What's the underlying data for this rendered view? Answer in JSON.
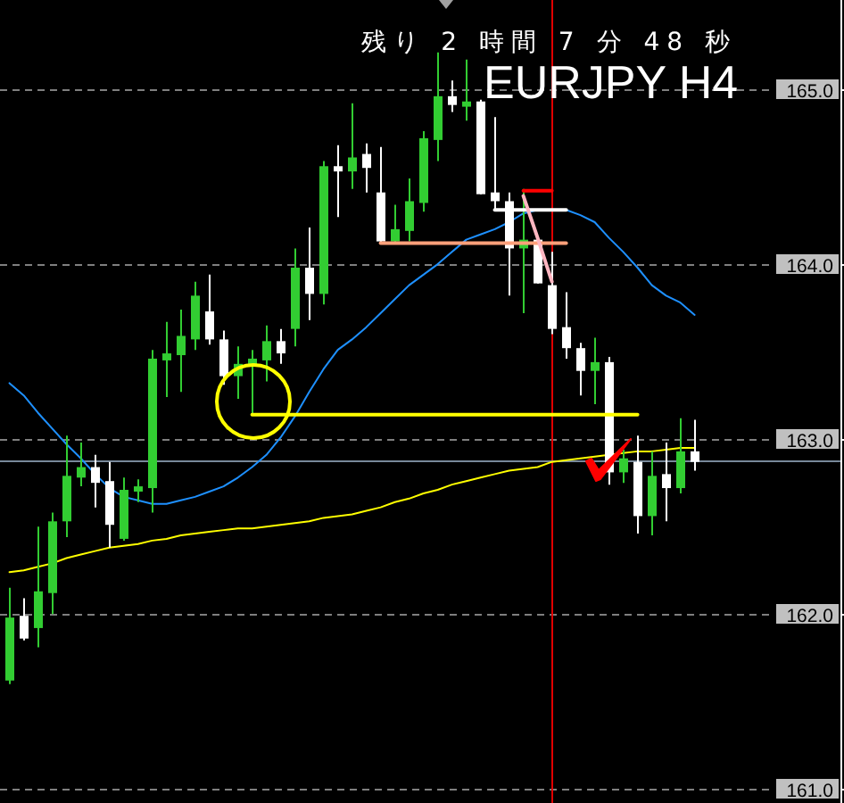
{
  "chart_data": {
    "type": "candlestick",
    "title": "EURJPY H4",
    "annotations": [
      "残り 2 時間 7 分 48 秒"
    ],
    "categories": [
      null,
      null,
      null,
      null,
      null,
      null,
      null,
      null,
      null,
      null,
      null,
      null,
      null,
      null,
      null,
      null,
      null,
      null,
      null,
      null,
      null,
      null,
      null,
      null,
      null,
      null,
      null,
      null,
      null,
      null,
      null,
      null,
      null,
      null,
      null,
      null,
      null,
      null,
      null,
      null,
      null,
      null,
      null,
      null,
      null,
      null,
      null,
      null,
      null
    ],
    "ohlc": [
      [
        161.62,
        162.15,
        161.6,
        161.98
      ],
      [
        161.99,
        162.09,
        161.85,
        161.86
      ],
      [
        161.92,
        162.5,
        161.81,
        162.13
      ],
      [
        162.12,
        162.58,
        162.0,
        162.53
      ],
      [
        162.53,
        163.02,
        162.44,
        162.79
      ],
      [
        162.78,
        162.98,
        162.73,
        162.84
      ],
      [
        162.84,
        162.91,
        162.61,
        162.75
      ],
      [
        162.76,
        162.87,
        162.38,
        162.51
      ],
      [
        162.43,
        162.78,
        162.42,
        162.71
      ],
      [
        162.7,
        162.77,
        162.64,
        162.73
      ],
      [
        162.72,
        163.51,
        162.58,
        163.46
      ],
      [
        163.45,
        163.67,
        163.24,
        163.49
      ],
      [
        163.48,
        163.74,
        163.27,
        163.59
      ],
      [
        163.57,
        163.9,
        163.51,
        163.82
      ],
      [
        163.73,
        163.94,
        163.54,
        163.57
      ],
      [
        163.57,
        163.62,
        163.31,
        163.36
      ],
      [
        163.36,
        163.53,
        163.23,
        163.43
      ],
      [
        163.42,
        163.51,
        163.14,
        163.46
      ],
      [
        163.45,
        163.65,
        163.33,
        163.56
      ],
      [
        163.56,
        163.63,
        163.43,
        163.49
      ],
      [
        163.63,
        164.09,
        163.53,
        163.98
      ],
      [
        163.98,
        164.21,
        163.68,
        163.83
      ],
      [
        163.83,
        164.59,
        163.77,
        164.56
      ],
      [
        164.56,
        164.68,
        164.27,
        164.53
      ],
      [
        164.53,
        164.92,
        164.43,
        164.61
      ],
      [
        164.63,
        164.69,
        164.41,
        164.55
      ],
      [
        164.41,
        164.67,
        164.12,
        164.13
      ],
      [
        164.13,
        164.34,
        164.12,
        164.2
      ],
      [
        164.19,
        164.49,
        164.13,
        164.36
      ],
      [
        164.35,
        164.76,
        164.3,
        164.72
      ],
      [
        164.71,
        165.21,
        164.59,
        164.96
      ],
      [
        164.96,
        165.05,
        164.87,
        164.91
      ],
      [
        164.9,
        165.17,
        164.82,
        164.93
      ],
      [
        164.93,
        164.94,
        164.4,
        164.4
      ],
      [
        164.41,
        164.84,
        164.31,
        164.36
      ],
      [
        164.36,
        164.41,
        163.82,
        164.09
      ],
      [
        164.09,
        164.43,
        163.72,
        164.14
      ],
      [
        164.14,
        164.14,
        163.89,
        163.89
      ],
      [
        163.88,
        164.07,
        163.6,
        163.63
      ],
      [
        163.64,
        163.84,
        163.46,
        163.52
      ],
      [
        163.52,
        163.55,
        163.25,
        163.39
      ],
      [
        163.39,
        163.58,
        163.2,
        163.44
      ],
      [
        163.44,
        163.47,
        162.74,
        162.81
      ],
      [
        162.81,
        162.94,
        162.75,
        162.89
      ],
      [
        162.87,
        163.02,
        162.46,
        162.56
      ],
      [
        162.56,
        162.93,
        162.45,
        162.79
      ],
      [
        162.8,
        162.98,
        162.53,
        162.72
      ],
      [
        162.72,
        163.12,
        162.69,
        162.93
      ],
      [
        162.93,
        163.11,
        162.82,
        162.87
      ]
    ],
    "colors": [
      "#32cd32",
      "#ffffff",
      "#32cd32",
      "#32cd32",
      "#32cd32",
      "#32cd32",
      "#ffffff",
      "#ffffff",
      "#32cd32",
      "#32cd32",
      "#32cd32",
      "#32cd32",
      "#32cd32",
      "#32cd32",
      "#ffffff",
      "#ffffff",
      "#32cd32",
      "#32cd32",
      "#32cd32",
      "#ffffff",
      "#32cd32",
      "#ffffff",
      "#32cd32",
      "#ffffff",
      "#32cd32",
      "#ffffff",
      "#ffffff",
      "#32cd32",
      "#32cd32",
      "#32cd32",
      "#32cd32",
      "#ffffff",
      "#32cd32",
      "#ffffff",
      "#ffffff",
      "#ffffff",
      "#32cd32",
      "#ffffff",
      "#ffffff",
      "#ffffff",
      "#ffffff",
      "#32cd32",
      "#ffffff",
      "#32cd32",
      "#ffffff",
      "#32cd32",
      "#ffffff",
      "#32cd32",
      "#ffffff"
    ],
    "series": [
      {
        "type": "line",
        "color": "#1e90ff",
        "values": [
          163.32,
          163.25,
          163.15,
          163.06,
          162.97,
          162.89,
          162.8,
          162.72,
          162.67,
          162.65,
          162.63,
          162.63,
          162.65,
          162.67,
          162.7,
          162.73,
          162.78,
          162.84,
          162.91,
          163.01,
          163.13,
          163.27,
          163.4,
          163.51,
          163.57,
          163.64,
          163.72,
          163.8,
          163.88,
          163.94,
          164.0,
          164.07,
          164.14,
          164.17,
          164.2,
          164.24,
          164.29,
          164.31,
          164.31,
          164.31,
          164.28,
          164.24,
          164.15,
          164.07,
          163.98,
          163.88,
          163.82,
          163.78,
          163.71
        ]
      },
      {
        "type": "line",
        "color": "#ffff00",
        "values": [
          162.24,
          162.25,
          162.27,
          162.29,
          162.32,
          162.34,
          162.36,
          162.38,
          162.39,
          162.4,
          162.42,
          162.43,
          162.45,
          162.46,
          162.47,
          162.48,
          162.49,
          162.49,
          162.5,
          162.51,
          162.52,
          162.53,
          162.55,
          162.56,
          162.57,
          162.59,
          162.61,
          162.64,
          162.66,
          162.69,
          162.71,
          162.74,
          162.76,
          162.78,
          162.8,
          162.82,
          162.83,
          162.84,
          162.87,
          162.88,
          162.89,
          162.9,
          162.91,
          162.92,
          162.93,
          162.93,
          162.94,
          162.95,
          162.95
        ]
      },
      {
        "type": "line",
        "color": "#ffff00",
        "values": [
          null,
          null,
          null,
          null,
          null,
          null,
          null,
          null,
          null,
          null,
          null,
          null,
          null,
          null,
          null,
          null,
          null,
          163.14,
          163.14,
          163.14,
          163.14,
          163.14,
          163.14,
          163.14,
          163.14,
          163.14,
          163.14,
          163.14,
          163.14,
          163.14,
          163.14,
          163.14,
          163.14,
          163.14,
          163.14,
          163.14,
          163.14,
          163.14,
          163.14,
          163.14,
          163.14,
          163.14,
          163.14,
          163.14,
          163.14,
          null,
          null,
          null,
          null
        ]
      },
      {
        "type": "line",
        "color": "#ffa07a",
        "values": [
          null,
          null,
          null,
          null,
          null,
          null,
          null,
          null,
          null,
          null,
          null,
          null,
          null,
          null,
          null,
          null,
          null,
          null,
          null,
          null,
          null,
          null,
          null,
          null,
          null,
          null,
          164.12,
          164.12,
          164.12,
          164.12,
          164.12,
          164.12,
          164.12,
          164.12,
          164.12,
          164.12,
          164.12,
          164.12,
          164.12,
          164.12,
          null,
          null,
          null,
          null,
          null,
          null,
          null,
          null,
          null
        ]
      },
      {
        "type": "line",
        "color": "#ffffff",
        "values": [
          null,
          null,
          null,
          null,
          null,
          null,
          null,
          null,
          null,
          null,
          null,
          null,
          null,
          null,
          null,
          null,
          null,
          null,
          null,
          null,
          null,
          null,
          null,
          null,
          null,
          null,
          null,
          null,
          null,
          null,
          null,
          null,
          null,
          null,
          164.31,
          164.31,
          164.31,
          164.31,
          164.31,
          164.31,
          null,
          null,
          null,
          null,
          null,
          null,
          null,
          null,
          null
        ]
      },
      {
        "type": "line",
        "color": "#ff0000",
        "values": [
          null,
          null,
          null,
          null,
          null,
          null,
          null,
          null,
          null,
          null,
          null,
          null,
          null,
          null,
          null,
          null,
          null,
          null,
          null,
          null,
          null,
          null,
          null,
          null,
          null,
          null,
          null,
          null,
          null,
          null,
          null,
          null,
          null,
          null,
          null,
          null,
          164.42,
          164.42,
          164.42,
          null,
          null,
          null,
          null,
          null,
          null,
          null,
          null,
          null,
          null
        ]
      },
      {
        "type": "line",
        "color": "#ffb6c1",
        "values": [
          null,
          null,
          null,
          null,
          null,
          null,
          null,
          null,
          null,
          null,
          null,
          null,
          null,
          null,
          null,
          null,
          null,
          null,
          null,
          null,
          null,
          null,
          null,
          null,
          null,
          null,
          null,
          null,
          null,
          null,
          null,
          null,
          null,
          null,
          null,
          null,
          164.39,
          164.15,
          163.9,
          null,
          null,
          null,
          null,
          null,
          null,
          null,
          null,
          null,
          null
        ]
      }
    ],
    "ylim": [
      160.92,
      165.51
    ],
    "yticks": [
      {
        "value": 161,
        "label": "161.0"
      },
      {
        "value": 162,
        "label": "162.0"
      },
      {
        "value": 163,
        "label": "163.0"
      },
      {
        "value": 164,
        "label": "164.0"
      },
      {
        "value": 165,
        "label": "165.0"
      }
    ],
    "ref_lines": [
      {
        "axis": "y",
        "value": 162.88,
        "color": "#778899"
      }
    ],
    "grid": "y",
    "tick_labels": "y"
  }
}
